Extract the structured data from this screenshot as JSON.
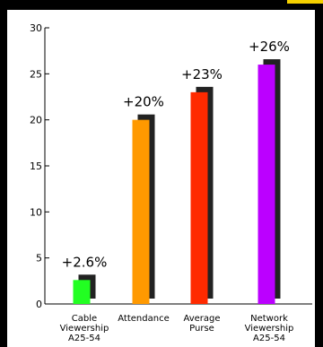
{
  "chart_data": {
    "type": "bar",
    "title": "",
    "xlabel": "",
    "ylabel": "",
    "ylim": [
      0,
      30
    ],
    "yticks": [
      0,
      5,
      10,
      15,
      20,
      25,
      30
    ],
    "grid": false,
    "categories": [
      [
        "Cable",
        "Viewership",
        "A25-54"
      ],
      [
        "Attendance"
      ],
      [
        "Average",
        "Purse"
      ],
      [
        "Network",
        "Viewership",
        "A25-54"
      ]
    ],
    "values": [
      2.6,
      20,
      23,
      26
    ],
    "data_labels": [
      "+2.6%",
      "+20%",
      "+23%",
      "+26%"
    ],
    "colors": [
      "#22ff22",
      "#ff9900",
      "#ff2a00",
      "#bb00ff"
    ],
    "shadow_color": "#222222"
  },
  "decor": {
    "accent_color": "#f5d000"
  }
}
